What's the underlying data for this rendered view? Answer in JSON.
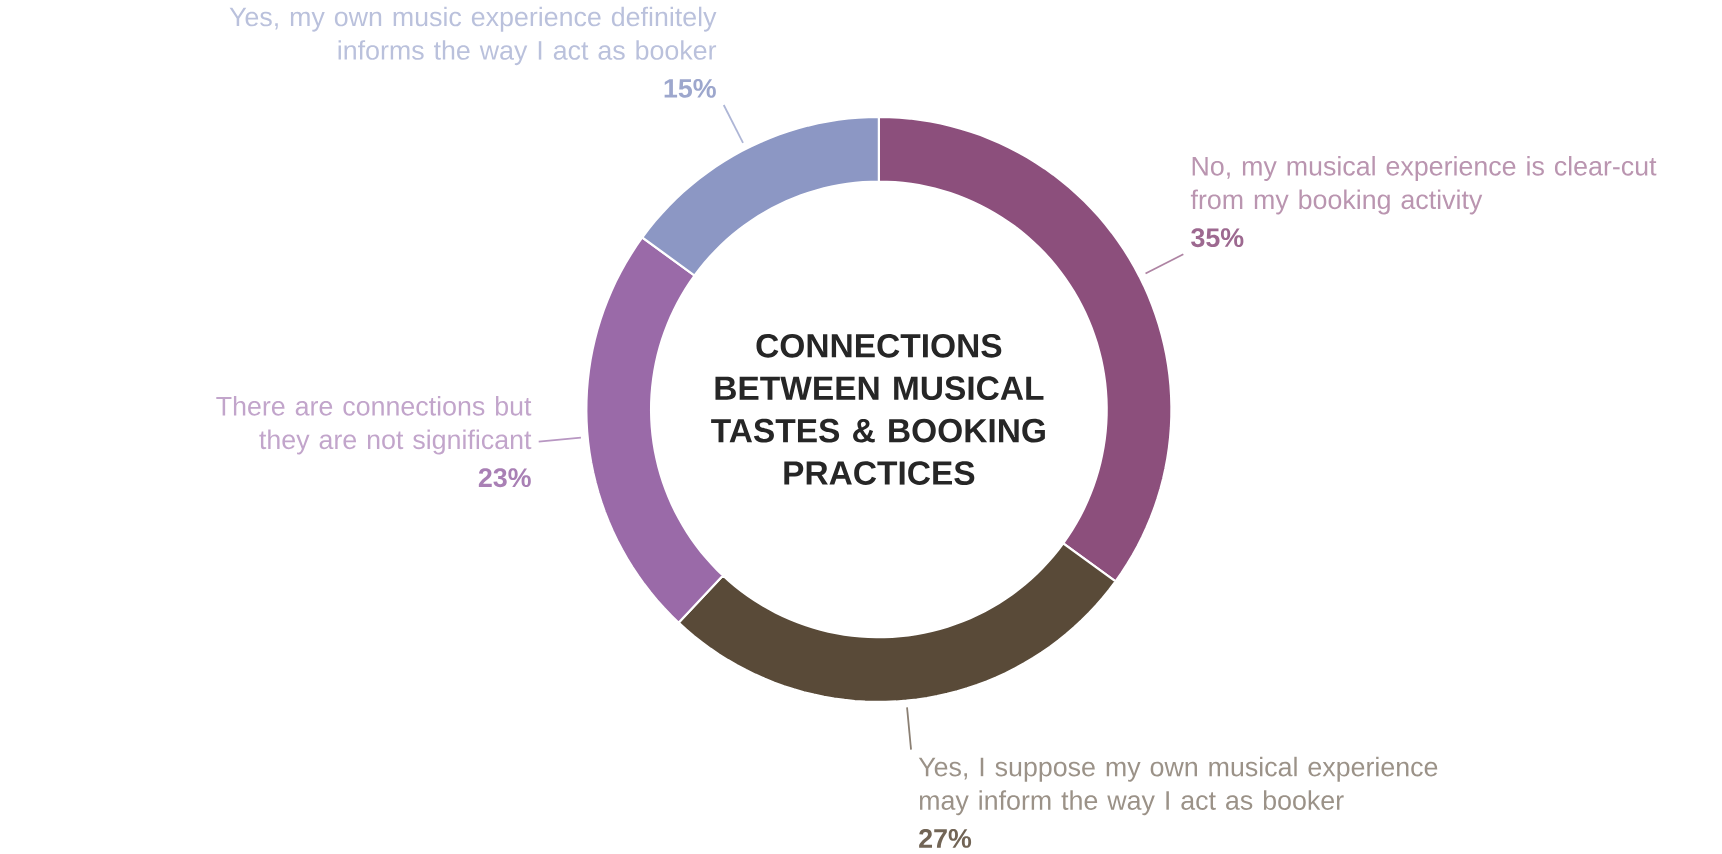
{
  "chart_data": {
    "type": "donut",
    "title": "CONNECTIONS BETWEEN MUSICAL TASTES & BOOKING PRACTICES",
    "categories": [
      "No, my musical experience is clear-cut from my booking activity",
      "Yes, I suppose my own musical experience may inform the way I act as booker",
      "There are connections but they are not significant",
      "Yes, my own music experience definitely informs the way I act as booker"
    ],
    "values": [
      35,
      27,
      23,
      15
    ],
    "colors": [
      "#8c4f7c",
      "#594a38",
      "#9a6aa8",
      "#8c97c4"
    ],
    "value_labels": [
      "35%",
      "27%",
      "23%",
      "15%"
    ]
  }
}
